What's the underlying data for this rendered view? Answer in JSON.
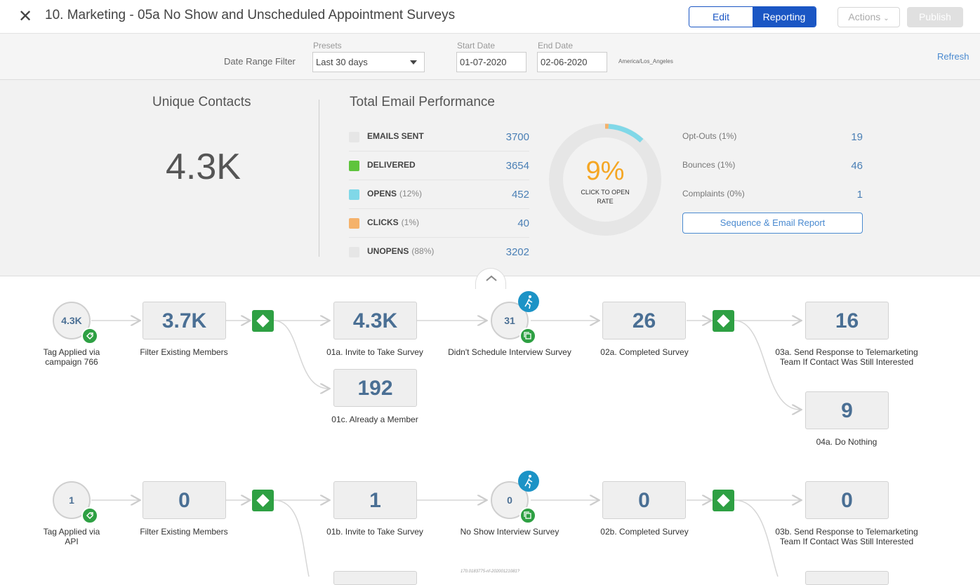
{
  "header": {
    "title": "10. Marketing - 05a No Show and Unscheduled Appointment Surveys",
    "edit_label": "Edit",
    "reporting_label": "Reporting",
    "actions_label": "Actions",
    "publish_label": "Publish"
  },
  "filter": {
    "date_range_label": "Date Range Filter",
    "presets_label": "Presets",
    "presets_value": "Last 30 days",
    "start_label": "Start Date",
    "start_value": "01-07-2020",
    "end_label": "End Date",
    "end_value": "02-06-2020",
    "timezone": "America/Los_Angeles",
    "refresh_label": "Refresh"
  },
  "stats": {
    "unique_contacts_title": "Unique Contacts",
    "unique_contacts_value": "4.3K",
    "email_title": "Total Email Performance",
    "metrics": [
      {
        "label": "EMAILS SENT",
        "pct": "",
        "value": "3700",
        "color": "#e6e6e6"
      },
      {
        "label": "DELIVERED",
        "pct": "",
        "value": "3654",
        "color": "#5ec43d"
      },
      {
        "label": "OPENS",
        "pct": "(12%)",
        "value": "452",
        "color": "#80d8e8"
      },
      {
        "label": "CLICKS",
        "pct": "(1%)",
        "value": "40",
        "color": "#f5b26b"
      },
      {
        "label": "UNOPENS",
        "pct": "(88%)",
        "value": "3202",
        "color": "#e6e6e6"
      }
    ],
    "donut": {
      "percent": "9%",
      "label": "CLICK TO OPEN RATE",
      "opens_fraction": 0.12,
      "clicks_fraction": 0.01
    },
    "right": [
      {
        "label": "Opt-Outs (1%)",
        "value": "19"
      },
      {
        "label": "Bounces (1%)",
        "value": "46"
      },
      {
        "label": "Complaints (0%)",
        "value": "1"
      }
    ],
    "report_button": "Sequence & Email Report"
  },
  "flow": {
    "row1": {
      "start_value": "4.3K",
      "start_label": "Tag Applied via campaign 766",
      "filter_value": "3.7K",
      "filter_label": "Filter Existing Members",
      "invite_value": "4.3K",
      "invite_label": "01a. Invite to Take Survey",
      "already_value": "192",
      "already_label": "01c. Already a Member",
      "wait_value": "31",
      "wait_label": "Didn't Schedule Interview Survey",
      "completed_value": "26",
      "completed_label": "02a. Completed Survey",
      "send_value": "16",
      "send_label": "03a. Send Response to Telemarketing Team If Contact Was Still Interested",
      "nothing_value": "9",
      "nothing_label": "04a. Do Nothing"
    },
    "row2": {
      "start_value": "1",
      "start_label": "Tag Applied via API",
      "filter_value": "0",
      "filter_label": "Filter Existing Members",
      "invite_value": "1",
      "invite_label": "01b. Invite to Take Survey",
      "wait_value": "0",
      "wait_label": "No Show Interview Survey",
      "completed_value": "0",
      "completed_label": "02b. Completed Survey",
      "send_value": "0",
      "send_label": "03b. Send Response to Telemarketing Team If Contact Was Still Interested"
    },
    "footnote": "170.0183775-nf-20200121081?"
  }
}
